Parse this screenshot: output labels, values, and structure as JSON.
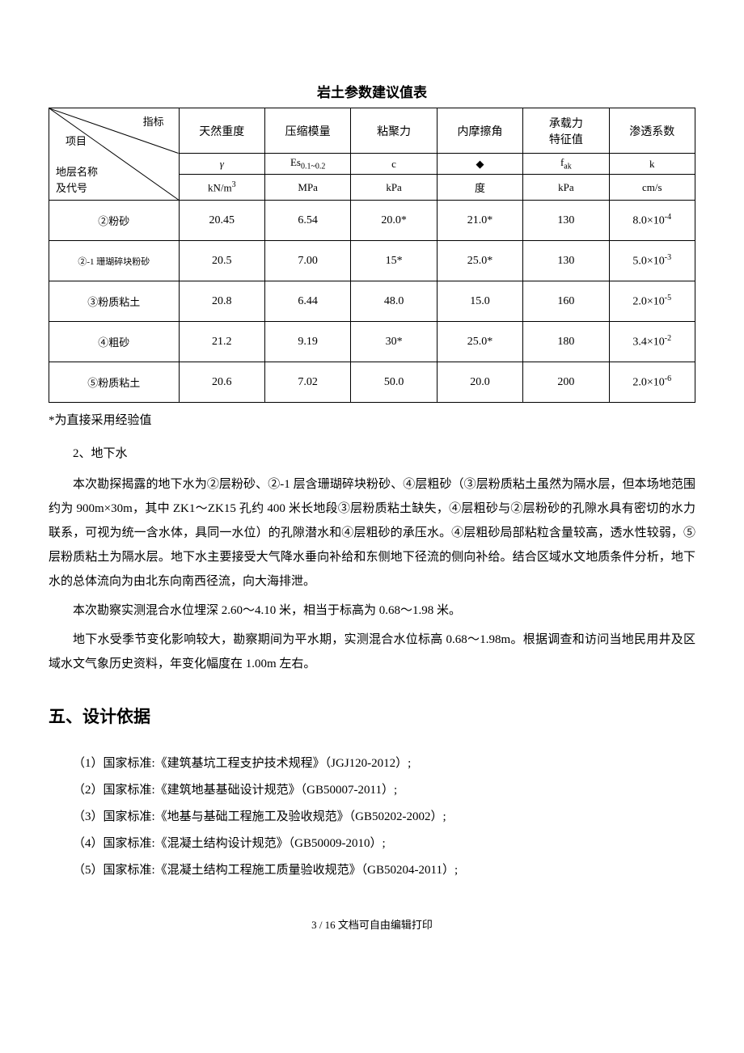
{
  "table": {
    "title": "岩土参数建议值表",
    "diagonal": {
      "top_right": "指标",
      "mid_left": "项目",
      "bottom_left_1": "地层名称",
      "bottom_left_2": "及代号"
    },
    "columns": [
      {
        "label": "天然重度",
        "symbol": "γ",
        "unit_html": "kN/m<span class='sup'>3</span>"
      },
      {
        "label": "压缩模量",
        "symbol_html": "Es<span class='sub'>0.1~0.2</span>",
        "unit": "MPa"
      },
      {
        "label": "粘聚力",
        "symbol": "c",
        "unit": "kPa"
      },
      {
        "label": "内摩擦角",
        "symbol": "◆",
        "unit": "度"
      },
      {
        "label": "承载力\n特征值",
        "symbol_html": "f<span class='sub'>ak</span>",
        "unit": "kPa",
        "unit_bold": true
      },
      {
        "label": "渗透系数",
        "symbol": "k",
        "unit": "cm/s"
      }
    ],
    "rows": [
      {
        "name": "②粉砂",
        "values": [
          "20.45",
          "6.54",
          "20.0*",
          "21.0*",
          "130",
          "8.0×10<span class='sup'>-4</span>"
        ]
      },
      {
        "name": "②-1 珊瑚碎块粉砂",
        "name_small": true,
        "values": [
          "20.5",
          "7.00",
          "15*",
          "25.0*",
          "130",
          "5.0×10<span class='sup'>-3</span>"
        ]
      },
      {
        "name": "③粉质粘土",
        "values": [
          "20.8",
          "6.44",
          "48.0",
          "15.0",
          "160",
          "2.0×10<span class='sup'>-5</span>"
        ]
      },
      {
        "name": "④粗砂",
        "values": [
          "21.2",
          "9.19",
          "30*",
          "25.0*",
          "180",
          "3.4×10<span class='sup'>-2</span>"
        ]
      },
      {
        "name": "⑤粉质粘土",
        "values": [
          "20.6",
          "7.02",
          "50.0",
          "20.0",
          "200",
          "2.0×10<span class='sup'>-6</span>"
        ]
      }
    ],
    "bold_col_index": 4
  },
  "note": "*为直接采用经验值",
  "section_2_label": "2、地下水",
  "paragraphs": [
    "本次勘探揭露的地下水为②层粉砂、②-1 层含珊瑚碎块粉砂、④层粗砂（③层粉质粘土虽然为隔水层，但本场地范围约为 900m×30m，其中 ZK1～ZK15 孔约 400 米长地段③层粉质粘土缺失，④层粗砂与②层粉砂的孔隙水具有密切的水力联系，可视为统一含水体，具同一水位）的孔隙潜水和④层粗砂的承压水。④层粗砂局部粘粒含量较高，透水性较弱，⑤层粉质粘土为隔水层。地下水主要接受大气降水垂向补给和东侧地下径流的侧向补给。结合区域水文地质条件分析，地下水的总体流向为由北东向南西径流，向大海排泄。",
    "本次勘察实测混合水位埋深 2.60～4.10 米，相当于标高为 0.68～1.98 米。",
    "地下水受季节变化影响较大，勘察期间为平水期，实测混合水位标高 0.68～1.98m。根据调查和访问当地民用井及区域水文气象历史资料，年变化幅度在 1.00m 左右。"
  ],
  "heading5": "五、设计依据",
  "standards": [
    "（1）国家标准:《建筑基坑工程支护技术规程》（JGJ120-2012）;",
    "（2）国家标准:《建筑地基基础设计规范》（GB50007-2011）;",
    "（3）国家标准:《地基与基础工程施工及验收规范》（GB50202-2002）;",
    "（4）国家标准:《混凝土结构设计规范》（GB50009-2010）;",
    "（5）国家标准:《混凝土结构工程施工质量验收规范》（GB50204-2011）;"
  ],
  "footer": "3 / 16 文档可自由编辑打印"
}
